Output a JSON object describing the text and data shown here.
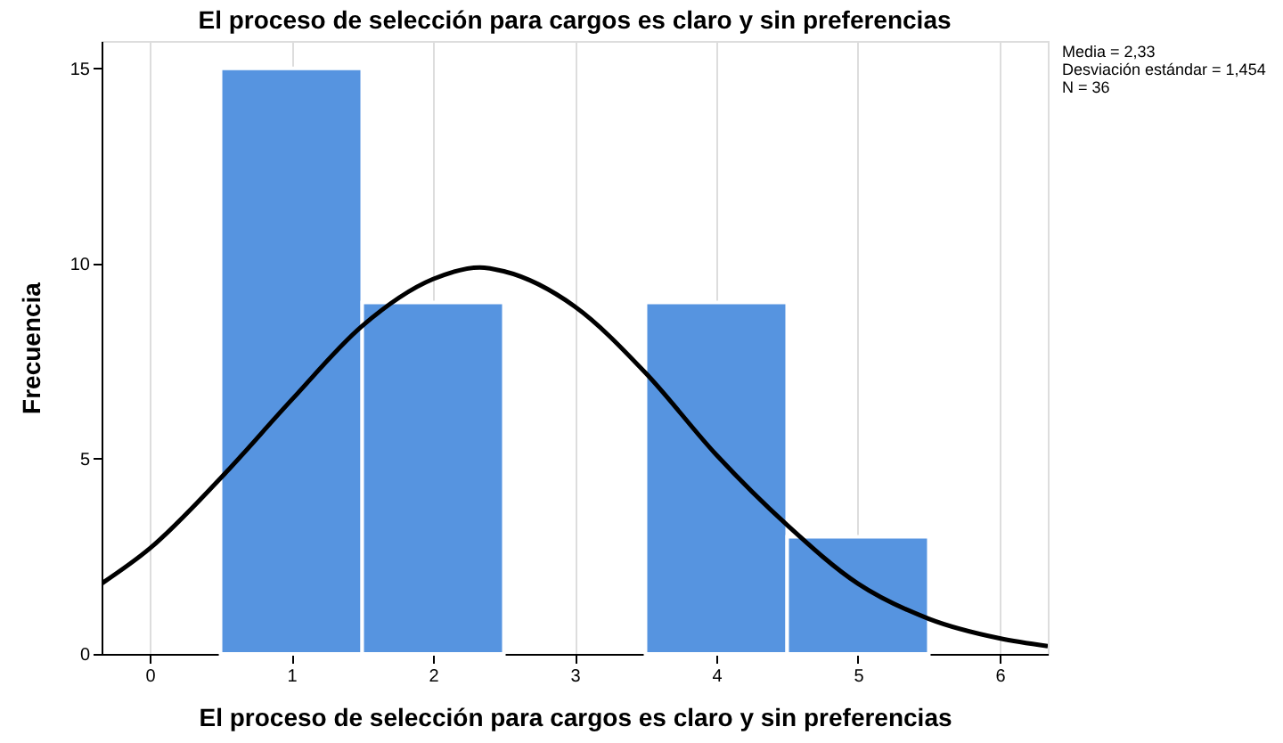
{
  "chart_data": {
    "type": "histogram",
    "title": "El proceso de selección para cargos es claro y sin preferencias",
    "xlabel": "El proceso de selección para cargos es claro y sin preferencias",
    "ylabel": "Frecuencia",
    "bins": [
      0.5,
      1.5,
      2.5,
      3.5,
      4.5,
      5.5
    ],
    "values": [
      15,
      9,
      0,
      9,
      3
    ],
    "color": "#5694e0",
    "series": [
      {
        "type": "line",
        "color": "#000000",
        "x": [
          -0.34,
          0,
          0.5,
          1,
          1.5,
          2,
          2.33,
          2.5,
          3,
          3.5,
          4,
          4.5,
          5,
          5.5,
          6,
          6.34
        ],
        "values": [
          1.8,
          2.7,
          4.5,
          6.5,
          8.4,
          9.6,
          9.9,
          9.8,
          8.9,
          7.2,
          5.1,
          3.3,
          1.8,
          0.9,
          0.4,
          0.2
        ]
      }
    ],
    "xlim": [
      -0.34,
      6.34
    ],
    "xticks": [
      0,
      1,
      2,
      3,
      4,
      5,
      6
    ],
    "ylim": [
      0,
      15.7
    ],
    "yticks": [
      0,
      5,
      10,
      15
    ],
    "grid": "x",
    "annotations": [
      "Media = 2,33",
      "Desviación estándar = 1,454",
      "N = 36"
    ]
  }
}
